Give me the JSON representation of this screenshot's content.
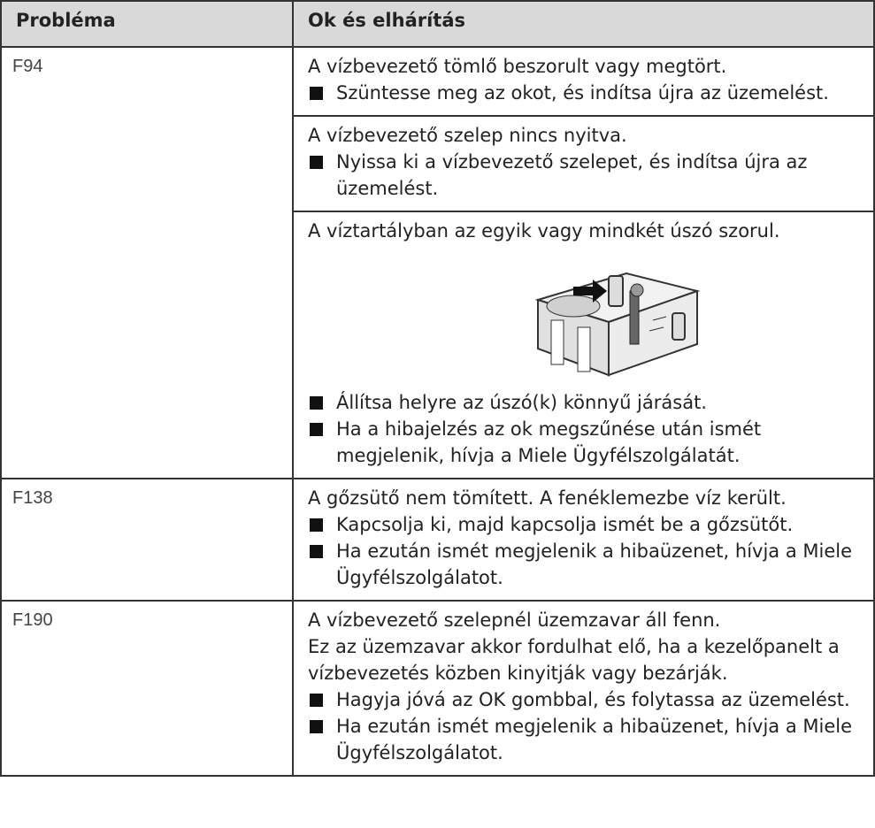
{
  "table": {
    "header": [
      "Probléma",
      "Ok és elhárítás"
    ],
    "rows": [
      {
        "code": "F94",
        "causes": [
          {
            "paragraphs": [
              "A vízbevezető tömlő beszorult vagy megtört."
            ],
            "steps": [
              "Szüntesse meg az okot, és indítsa újra az üzemelést."
            ]
          },
          {
            "paragraphs": [
              "A vízbevezető szelep nincs nyitva."
            ],
            "steps": [
              "Nyissa ki a vízbevezető szelepet, és indítsa újra az üzemelést."
            ]
          },
          {
            "paragraphs": [
              "A víztartályban az egyik vagy mindkét úszó szorul."
            ],
            "steps": [
              "Állítsa helyre az úszó(k) könnyű járását.",
              "Ha a hibajelzés az ok megszűnése után ismét megjelenik, hívja a Miele Ügyfélszolgálatát."
            ]
          }
        ]
      },
      {
        "code": "F138",
        "causes": [
          {
            "paragraphs": [
              "A gőzsütő nem tömített. A fenéklemezbe víz került."
            ],
            "steps": [
              "Kapcsolja ki, majd kapcsolja ismét be a gőzsütőt.",
              "Ha ezután ismét megjelenik a hibaüzenet, hívja a Miele Ügyfélszolgálatot."
            ]
          }
        ]
      },
      {
        "code": "F190",
        "causes": [
          {
            "paragraphs": [
              "A vízbevezető szelepnél üzemzavar áll fenn.",
              "Ez az üzemzavar akkor fordulhat elő, ha a kezelőpanelt a vízbevezetés közben kinyitják vagy bezárják."
            ],
            "steps": [
              "Hagyja jóvá az OK gombbal, és folytassa az üzemelést.",
              "Ha ezután ismét megjelenik a hibaüzenet, hívja a Miele Ügyfélszolgálatot."
            ]
          }
        ]
      }
    ]
  }
}
